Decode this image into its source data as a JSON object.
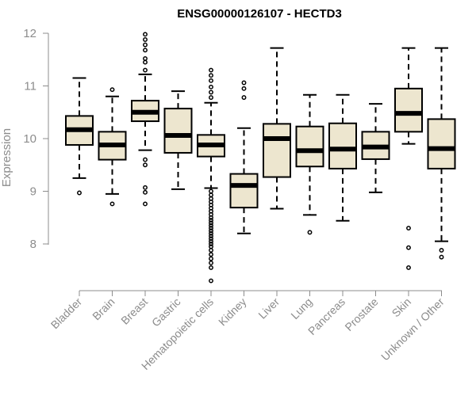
{
  "chart_data": {
    "type": "boxplot",
    "title": "ENSG00000126107 - HECTD3",
    "xlabel": "",
    "ylabel": "Expression",
    "ylim": [
      7.15,
      12.0
    ],
    "yticks": [
      8,
      9,
      10,
      11,
      12
    ],
    "box_color": "#ede6cf",
    "categories": [
      "Bladder",
      "Brain",
      "Breast",
      "Gastric",
      "Hematopoietic cells",
      "Kidney",
      "Liver",
      "Lung",
      "Pancreas",
      "Prostate",
      "Skin",
      "Unknown / Other"
    ],
    "boxes": [
      {
        "name": "Bladder",
        "whisker_low": 9.25,
        "q1": 9.88,
        "median": 10.17,
        "q3": 10.43,
        "whisker_high": 11.15,
        "outliers": [
          8.97
        ]
      },
      {
        "name": "Brain",
        "whisker_low": 8.95,
        "q1": 9.6,
        "median": 9.88,
        "q3": 10.13,
        "whisker_high": 10.8,
        "outliers": [
          10.93,
          8.76
        ]
      },
      {
        "name": "Breast",
        "whisker_low": 9.78,
        "q1": 10.33,
        "median": 10.5,
        "q3": 10.72,
        "whisker_high": 11.22,
        "outliers": [
          11.98,
          11.88,
          11.78,
          11.68,
          11.52,
          11.45,
          11.3,
          9.6,
          9.5,
          9.07,
          8.98,
          8.76
        ]
      },
      {
        "name": "Gastric",
        "whisker_low": 9.04,
        "q1": 9.73,
        "median": 10.06,
        "q3": 10.57,
        "whisker_high": 10.9,
        "outliers": []
      },
      {
        "name": "Hematopoietic cells",
        "whisker_low": 9.06,
        "q1": 9.66,
        "median": 9.88,
        "q3": 10.07,
        "whisker_high": 10.68,
        "outliers": [
          11.3,
          11.2,
          11.1,
          10.98,
          10.88,
          10.78,
          9.0,
          8.93,
          8.86,
          8.8,
          8.74,
          8.68,
          8.62,
          8.56,
          8.5,
          8.45,
          8.4,
          8.35,
          8.3,
          8.25,
          8.2,
          8.15,
          8.1,
          8.05,
          8.0,
          7.95,
          7.88,
          7.8,
          7.72,
          7.64,
          7.55,
          7.3
        ]
      },
      {
        "name": "Kidney",
        "whisker_low": 8.2,
        "q1": 8.69,
        "median": 9.11,
        "q3": 9.33,
        "whisker_high": 10.2,
        "outliers": [
          11.06,
          10.95,
          10.78
        ]
      },
      {
        "name": "Liver",
        "whisker_low": 8.67,
        "q1": 9.27,
        "median": 10.0,
        "q3": 10.28,
        "whisker_high": 11.72,
        "outliers": []
      },
      {
        "name": "Lung",
        "whisker_low": 8.55,
        "q1": 9.47,
        "median": 9.77,
        "q3": 10.23,
        "whisker_high": 10.83,
        "outliers": [
          8.22
        ]
      },
      {
        "name": "Pancreas",
        "whisker_low": 8.44,
        "q1": 9.43,
        "median": 9.8,
        "q3": 10.29,
        "whisker_high": 10.83,
        "outliers": []
      },
      {
        "name": "Prostate",
        "whisker_low": 8.98,
        "q1": 9.61,
        "median": 9.84,
        "q3": 10.13,
        "whisker_high": 10.66,
        "outliers": []
      },
      {
        "name": "Skin",
        "whisker_low": 9.9,
        "q1": 10.13,
        "median": 10.48,
        "q3": 10.95,
        "whisker_high": 11.72,
        "outliers": [
          8.3,
          7.93,
          7.55
        ]
      },
      {
        "name": "Unknown / Other",
        "whisker_low": 8.05,
        "q1": 9.43,
        "median": 9.81,
        "q3": 10.37,
        "whisker_high": 11.72,
        "outliers": [
          7.88,
          7.75
        ]
      }
    ]
  }
}
